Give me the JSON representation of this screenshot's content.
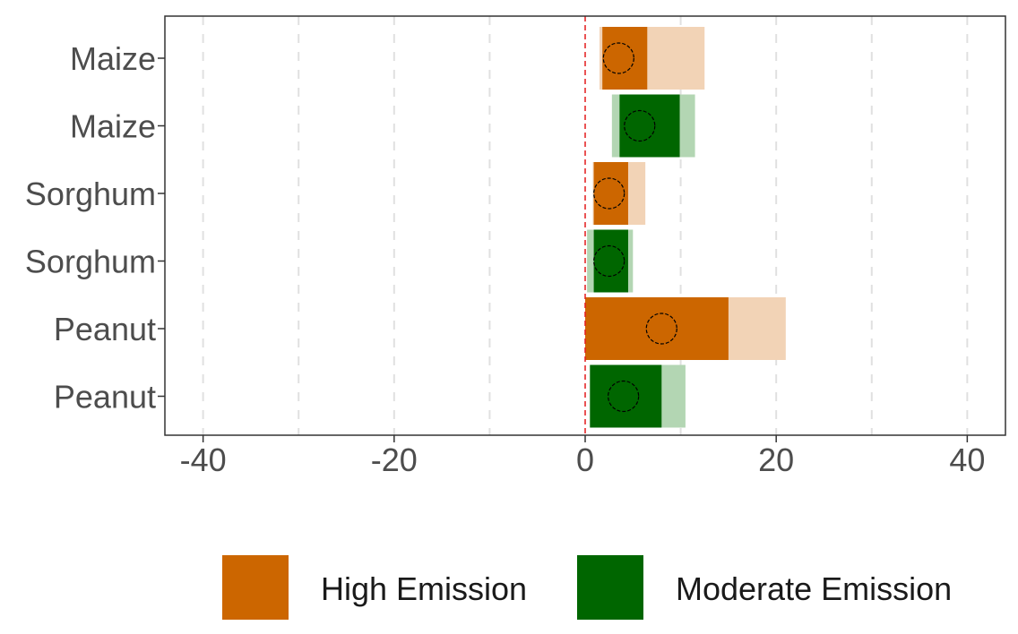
{
  "chart_data": {
    "type": "bar",
    "orientation": "horizontal",
    "categories": [
      "Maize",
      "Maize",
      "Sorghum",
      "Sorghum",
      "Peanut",
      "Peanut"
    ],
    "series_of_row": [
      "High Emission",
      "Moderate Emission",
      "High Emission",
      "Moderate Emission",
      "High Emission",
      "Moderate Emission"
    ],
    "series": [
      {
        "name": "High Emission",
        "color": "#cc6600",
        "light_color": "#f2d3b6"
      },
      {
        "name": "Moderate Emission",
        "color": "#006600",
        "light_color": "#b3d6b3"
      }
    ],
    "bars": [
      {
        "outer": [
          1.5,
          12.5
        ],
        "inner": [
          1.8,
          6.5
        ],
        "point": 3.5
      },
      {
        "outer": [
          2.8,
          11.5
        ],
        "inner": [
          3.6,
          9.9
        ],
        "point": 5.7
      },
      {
        "outer": [
          0.8,
          6.3
        ],
        "inner": [
          0.9,
          4.5
        ],
        "point": 2.5
      },
      {
        "outer": [
          0.2,
          5.0
        ],
        "inner": [
          0.9,
          4.5
        ],
        "point": 2.5
      },
      {
        "outer": [
          0.0,
          21.0
        ],
        "inner": [
          0.0,
          15.0
        ],
        "point": 8.0
      },
      {
        "outer": [
          0.5,
          10.5
        ],
        "inner": [
          0.5,
          8.0
        ],
        "point": 4.0
      }
    ],
    "x_ticks": [
      -40,
      -20,
      0,
      20,
      40
    ],
    "x_tick_labels": [
      "-40",
      "-20",
      "0",
      "20",
      "40"
    ],
    "x_dashed_gridlines": [
      -40,
      -30,
      -20,
      -10,
      0,
      10,
      20,
      30,
      40
    ],
    "xlim": [
      -44,
      44
    ],
    "reference_line": 0,
    "reference_line_color": "#e31a1c",
    "grid": true,
    "legend_position": "bottom",
    "title": "",
    "xlabel": "",
    "ylabel": ""
  }
}
